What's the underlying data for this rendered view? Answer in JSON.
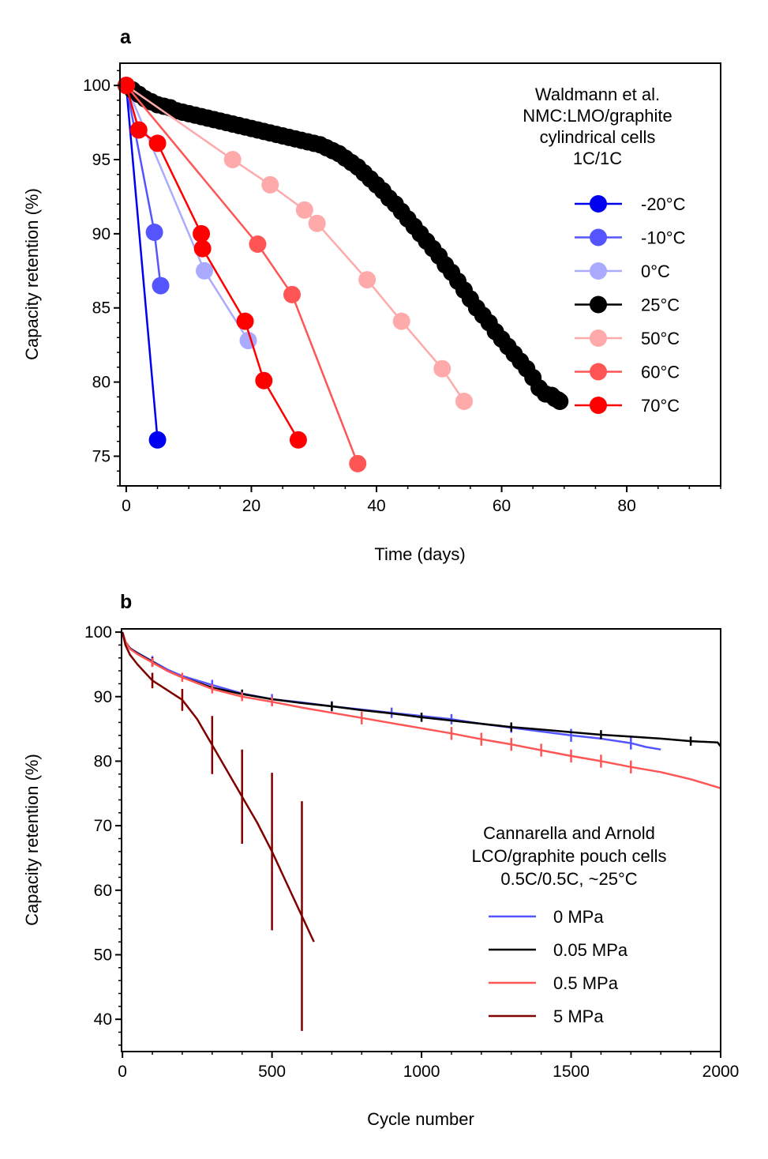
{
  "chart_data": [
    {
      "type": "line",
      "panel_label": "a",
      "xlabel": "Time (days)",
      "ylabel": "Capacity retention (%)",
      "xlim": [
        -1,
        95
      ],
      "ylim": [
        73,
        101.5
      ],
      "xticks": [
        0,
        20,
        40,
        60,
        80
      ],
      "yticks": [
        75,
        80,
        85,
        90,
        95,
        100
      ],
      "legend_position": "top-right",
      "legend_title": [
        "Waldmann et al.",
        "NMC:LMO/graphite",
        "cylindrical cells",
        "1C/1C"
      ],
      "series": [
        {
          "name": "-20°C",
          "color": "#0000f0",
          "x": [
            0,
            5
          ],
          "y": [
            100,
            76.1
          ]
        },
        {
          "name": "-10°C",
          "color": "#5555ff",
          "x": [
            0,
            4.5,
            5.5
          ],
          "y": [
            100,
            90.1,
            86.5
          ]
        },
        {
          "name": "0°C",
          "color": "#aaaaff",
          "x": [
            0,
            12.5,
            19.5
          ],
          "y": [
            100,
            87.5,
            82.8
          ]
        },
        {
          "name": "25°C",
          "color": "#000000",
          "x": [
            0,
            1,
            2,
            3,
            4,
            5,
            6,
            7,
            8,
            9,
            10,
            11,
            12,
            13,
            14,
            15,
            16,
            17,
            18,
            19,
            20,
            21,
            22,
            23,
            24,
            25,
            26,
            27,
            28,
            29,
            30,
            31,
            32,
            33,
            34,
            35,
            36,
            37,
            38,
            39,
            40,
            41,
            42,
            43,
            44,
            45,
            46,
            47,
            48,
            49,
            50,
            51,
            52,
            53,
            54,
            55,
            56,
            57,
            58,
            59,
            60,
            61,
            62,
            63,
            64,
            65,
            66,
            67,
            68,
            68.5,
            69,
            69.3
          ],
          "y": [
            100,
            99.7,
            99.4,
            99.1,
            98.9,
            98.7,
            98.6,
            98.5,
            98.3,
            98.2,
            98.1,
            98.0,
            97.9,
            97.8,
            97.7,
            97.6,
            97.5,
            97.4,
            97.3,
            97.2,
            97.1,
            97.0,
            96.9,
            96.8,
            96.7,
            96.6,
            96.5,
            96.4,
            96.3,
            96.2,
            96.1,
            96.0,
            95.8,
            95.6,
            95.4,
            95.1,
            94.8,
            94.5,
            94.1,
            93.7,
            93.3,
            92.9,
            92.4,
            92.0,
            91.5,
            91.0,
            90.5,
            90.0,
            89.5,
            89.0,
            88.5,
            87.9,
            87.4,
            86.8,
            86.2,
            85.6,
            85.0,
            84.5,
            84.0,
            83.4,
            82.9,
            82.4,
            81.9,
            81.4,
            80.9,
            80.3,
            79.6,
            79.2,
            79.1,
            78.9,
            78.8,
            78.7
          ]
        },
        {
          "name": "50°C",
          "color": "#ffaaaa",
          "x": [
            0,
            17,
            23,
            28.5,
            30.5,
            38.5,
            44,
            50.5,
            54
          ],
          "y": [
            100,
            95.0,
            93.3,
            91.6,
            90.7,
            86.9,
            84.1,
            80.9,
            78.7
          ]
        },
        {
          "name": "60°C",
          "color": "#ff5555",
          "x": [
            0,
            21,
            26.5,
            37
          ],
          "y": [
            100,
            89.3,
            85.9,
            74.5
          ]
        },
        {
          "name": "70°C",
          "color": "#ff0000",
          "x": [
            0,
            2,
            5,
            12,
            12.2,
            19,
            22,
            27.5
          ],
          "y": [
            100,
            97.0,
            96.1,
            90.0,
            89.0,
            84.1,
            80.1,
            76.1
          ]
        }
      ]
    },
    {
      "type": "line",
      "panel_label": "b",
      "xlabel": "Cycle number",
      "ylabel": "Capacity retention (%)",
      "xlim": [
        -3,
        2000
      ],
      "ylim": [
        35,
        100.5
      ],
      "xticks": [
        0,
        500,
        1000,
        1500,
        2000
      ],
      "yticks": [
        40,
        50,
        60,
        70,
        80,
        90,
        100
      ],
      "legend_position": "lower-right",
      "legend_title": [
        "Cannarella and Arnold",
        "LCO/graphite pouch cells",
        "0.5C/0.5C, ~25°C"
      ],
      "series": [
        {
          "name": "0 MPa",
          "color": "#5555ff",
          "x": [
            0,
            10,
            25,
            50,
            100,
            150,
            200,
            300,
            400,
            500,
            600,
            700,
            800,
            900,
            1000,
            1100,
            1200,
            1300,
            1400,
            1500,
            1600,
            1700,
            1750,
            1800
          ],
          "y": [
            100,
            98.5,
            97.5,
            96.8,
            95.5,
            94.2,
            93.2,
            91.8,
            90.5,
            89.6,
            89.1,
            88.5,
            88.0,
            87.5,
            87.0,
            86.5,
            85.8,
            85.2,
            84.6,
            84.0,
            83.5,
            82.8,
            82.2,
            81.8
          ],
          "error_x": [
            100,
            300,
            500,
            700,
            900,
            1100,
            1300,
            1500,
            1700
          ],
          "error_half": [
            0.8,
            0.8,
            0.8,
            0.8,
            0.8,
            0.8,
            0.8,
            1.0,
            1.0
          ]
        },
        {
          "name": "0.05 MPa",
          "color": "#000000",
          "x": [
            0,
            10,
            25,
            50,
            100,
            150,
            200,
            300,
            400,
            500,
            600,
            700,
            800,
            900,
            1000,
            1100,
            1200,
            1300,
            1400,
            1500,
            1600,
            1700,
            1800,
            1900,
            1990,
            2000
          ],
          "y": [
            100,
            98.5,
            97.5,
            96.7,
            95.4,
            94.0,
            93.0,
            91.4,
            90.4,
            89.6,
            89.0,
            88.5,
            87.9,
            87.4,
            86.8,
            86.3,
            85.8,
            85.3,
            84.9,
            84.5,
            84.1,
            83.8,
            83.5,
            83.1,
            82.9,
            82.3
          ],
          "error_x": [
            100,
            400,
            700,
            1000,
            1300,
            1600,
            1900
          ],
          "error_half": [
            0.7,
            0.7,
            0.7,
            0.7,
            0.7,
            0.7,
            0.7
          ]
        },
        {
          "name": "0.5 MPa",
          "color": "#ff5555",
          "x": [
            0,
            10,
            25,
            50,
            100,
            150,
            200,
            300,
            400,
            500,
            600,
            700,
            800,
            900,
            1000,
            1100,
            1200,
            1300,
            1400,
            1500,
            1600,
            1700,
            1800,
            1900,
            2000
          ],
          "y": [
            100,
            98.5,
            97.4,
            96.6,
            95.3,
            94.0,
            93.0,
            91.2,
            90.0,
            89.2,
            88.3,
            87.5,
            86.7,
            85.9,
            85.1,
            84.3,
            83.4,
            82.6,
            81.7,
            80.8,
            80.0,
            79.1,
            78.3,
            77.2,
            75.8
          ],
          "error_x": [
            100,
            200,
            300,
            400,
            500,
            800,
            1100,
            1200,
            1300,
            1400,
            1500,
            1600,
            1700
          ],
          "error_half": [
            0.7,
            0.7,
            0.7,
            0.7,
            0.7,
            1.0,
            1.0,
            1.0,
            1.0,
            1.0,
            1.0,
            1.0,
            1.0
          ]
        },
        {
          "name": "5 MPa",
          "color": "#800000",
          "x": [
            0,
            10,
            25,
            50,
            100,
            150,
            200,
            250,
            300,
            350,
            400,
            450,
            500,
            550,
            600,
            640
          ],
          "y": [
            100,
            98.0,
            96.5,
            95.0,
            92.5,
            91.0,
            89.5,
            86.5,
            82.5,
            78.5,
            74.5,
            70.5,
            66.0,
            61.0,
            56.0,
            52.0
          ],
          "error_x": [
            100,
            200,
            300,
            400,
            500,
            600
          ],
          "error_half": [
            1.2,
            1.7,
            4.5,
            7.3,
            12.2,
            17.8
          ]
        }
      ]
    }
  ]
}
